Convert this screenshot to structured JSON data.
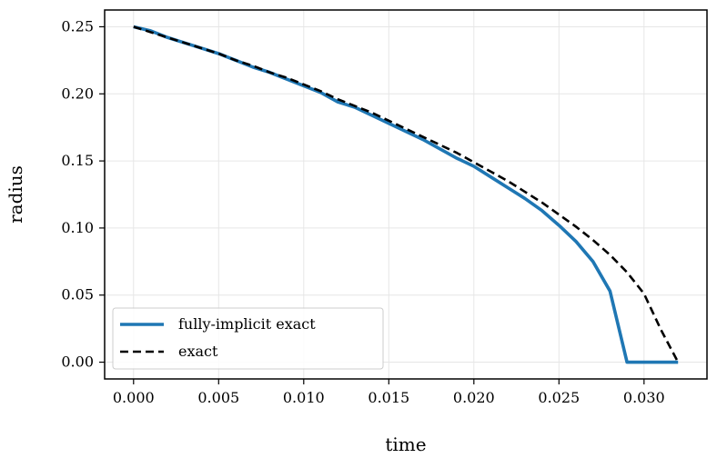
{
  "chart_data": {
    "type": "line",
    "title": "",
    "xlabel": "time",
    "ylabel": "radius",
    "xlim": [
      -0.0017,
      0.0337
    ],
    "ylim": [
      -0.0125,
      0.2625
    ],
    "xticks": [
      0.0,
      0.005,
      0.01,
      0.015,
      0.02,
      0.025,
      0.03
    ],
    "xtick_labels": [
      "0.000",
      "0.005",
      "0.010",
      "0.015",
      "0.020",
      "0.025",
      "0.030"
    ],
    "yticks": [
      0.0,
      0.05,
      0.1,
      0.15,
      0.2,
      0.25
    ],
    "ytick_labels": [
      "0.00",
      "0.05",
      "0.10",
      "0.15",
      "0.20",
      "0.25"
    ],
    "grid": true,
    "legend_position": "lower-left",
    "series": [
      {
        "name": "fully-implicit exact",
        "color": "#1f77b4",
        "style": "solid",
        "x": [
          0.0,
          0.001,
          0.002,
          0.003,
          0.004,
          0.005,
          0.006,
          0.007,
          0.008,
          0.009,
          0.01,
          0.011,
          0.012,
          0.013,
          0.014,
          0.015,
          0.016,
          0.017,
          0.018,
          0.019,
          0.02,
          0.021,
          0.022,
          0.023,
          0.024,
          0.025,
          0.026,
          0.027,
          0.028,
          0.029,
          0.03,
          0.031,
          0.032
        ],
        "y": [
          0.25,
          0.247,
          0.242,
          0.238,
          0.234,
          0.23,
          0.225,
          0.22,
          0.216,
          0.211,
          0.206,
          0.201,
          0.194,
          0.19,
          0.184,
          0.178,
          0.172,
          0.166,
          0.159,
          0.152,
          0.146,
          0.138,
          0.13,
          0.122,
          0.113,
          0.102,
          0.09,
          0.075,
          0.053,
          0.0,
          0.0,
          0.0,
          0.0
        ]
      },
      {
        "name": "exact",
        "color": "#000000",
        "style": "dashed",
        "x": [
          0.0,
          0.001,
          0.002,
          0.003,
          0.004,
          0.005,
          0.006,
          0.007,
          0.008,
          0.009,
          0.01,
          0.011,
          0.012,
          0.013,
          0.014,
          0.015,
          0.016,
          0.017,
          0.018,
          0.019,
          0.02,
          0.021,
          0.022,
          0.023,
          0.024,
          0.025,
          0.026,
          0.027,
          0.028,
          0.029,
          0.03,
          0.031,
          0.032
        ],
        "y": [
          0.25,
          0.246,
          0.242,
          0.238,
          0.234,
          0.23,
          0.225,
          0.221,
          0.216,
          0.212,
          0.207,
          0.202,
          0.196,
          0.191,
          0.186,
          0.18,
          0.174,
          0.168,
          0.162,
          0.156,
          0.149,
          0.142,
          0.135,
          0.127,
          0.119,
          0.11,
          0.101,
          0.091,
          0.08,
          0.067,
          0.051,
          0.024,
          0.0
        ]
      }
    ]
  }
}
